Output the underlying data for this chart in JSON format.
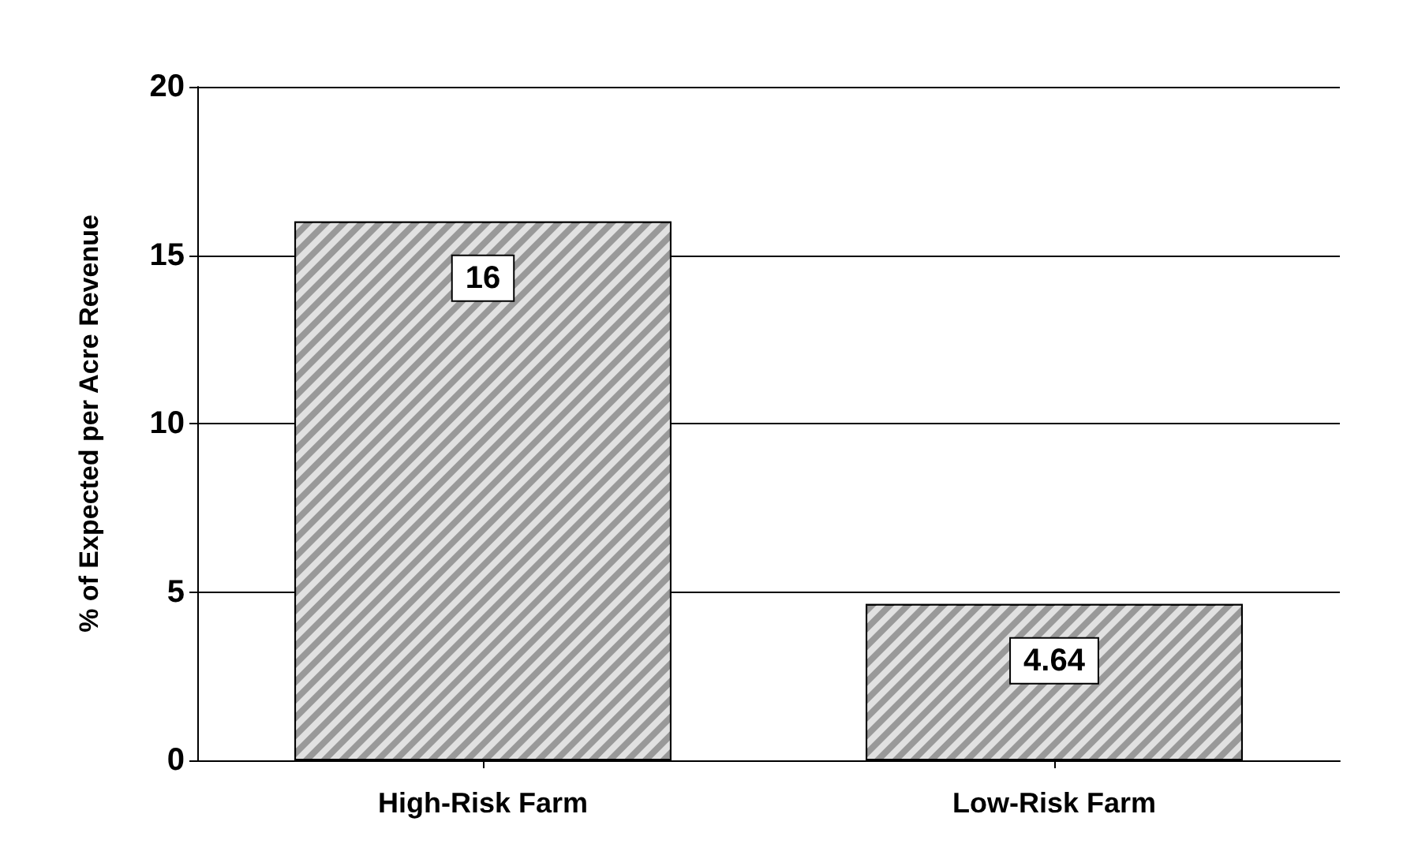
{
  "chart_data": {
    "type": "bar",
    "ylabel": "% of Expected per Acre Revenue",
    "categories": [
      "High-Risk Farm",
      "Low-Risk Farm"
    ],
    "values": [
      16,
      4.64
    ],
    "color": "#999999",
    "ylim": [
      0,
      20
    ],
    "yticks": [
      0,
      5,
      10,
      15,
      20
    ],
    "grid": "y",
    "data_labels": true
  }
}
